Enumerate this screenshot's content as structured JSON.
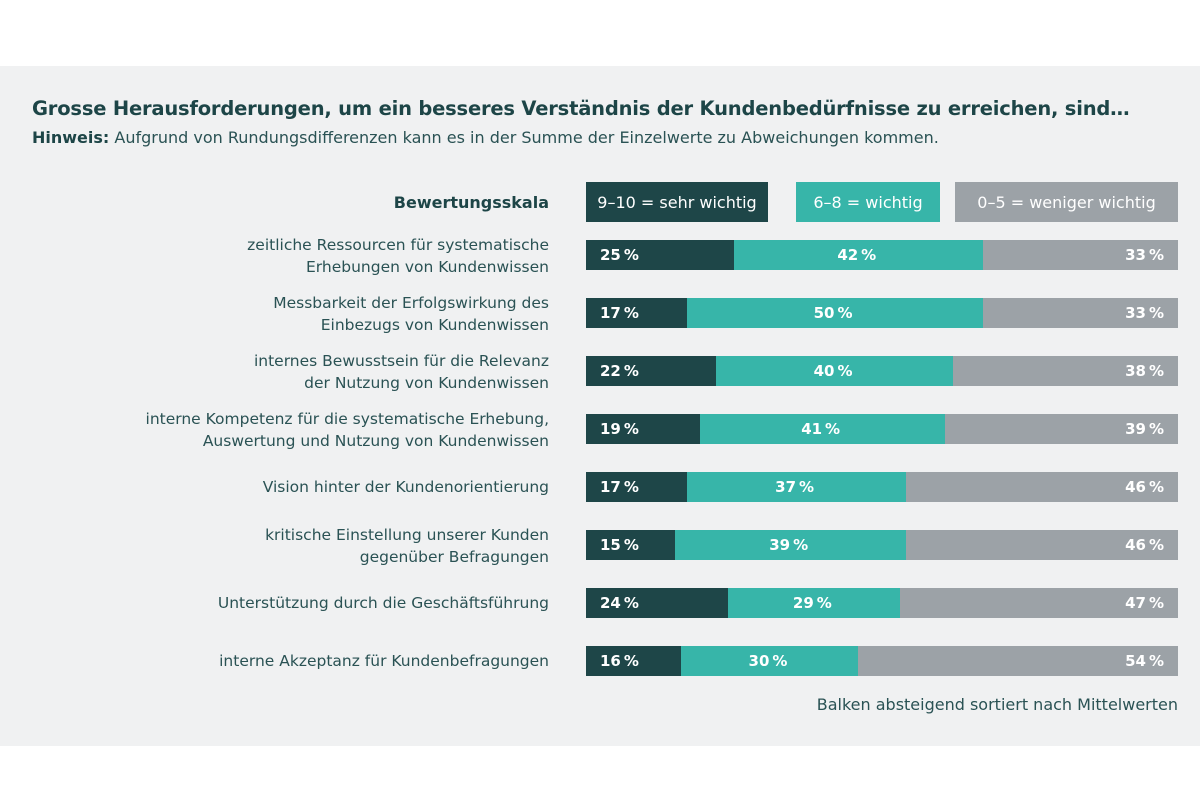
{
  "colors": {
    "sehr_wichtig": "#1e4648",
    "wichtig": "#37b5a9",
    "weniger_wichtig": "#9ca2a7",
    "panel_bg": "#f0f1f2",
    "text": "#1d4547"
  },
  "chart_data": {
    "type": "bar",
    "orientation": "horizontal-stacked-100",
    "title": "Grosse Herausforderungen, um ein besseres Verständnis der Kundenbedürfnisse zu erreichen, sind…",
    "note_label": "Hinweis:",
    "note_text": " Aufgrund von Rundungsdifferenzen kann es in der Summe der Einzelwerte zu Abweichungen kommen.",
    "legend_title": "Bewertungsskala",
    "legend_position": "top",
    "footnote": "Balken absteigend sortiert nach Mittelwerten",
    "unit": "%",
    "xlim": [
      0,
      100
    ],
    "categories": [
      [
        "zeitliche Ressourcen für systematische",
        "Erhebungen von Kundenwissen"
      ],
      [
        "Messbarkeit der Erfolgswirkung des",
        "Einbezugs von Kundenwissen"
      ],
      [
        "internes Bewusstsein für die Relevanz",
        "der Nutzung von Kundenwissen"
      ],
      [
        "interne Kompetenz für die systematische Erhebung,",
        "Auswertung und Nutzung von Kundenwissen"
      ],
      [
        "Vision hinter der Kundenorientierung"
      ],
      [
        "kritische Einstellung unserer Kunden",
        "gegenüber Befragungen"
      ],
      [
        "Unterstützung durch die Geschäftsführung"
      ],
      [
        "interne Akzeptanz für Kundenbefragungen"
      ]
    ],
    "series": [
      {
        "name": "9–10 = sehr wichtig",
        "color_key": "sehr_wichtig",
        "values": [
          25,
          17,
          22,
          19,
          17,
          15,
          24,
          16
        ]
      },
      {
        "name": "6–8 = wichtig",
        "color_key": "wichtig",
        "values": [
          42,
          50,
          40,
          41,
          37,
          39,
          29,
          30
        ]
      },
      {
        "name": "0–5 = weniger wichtig",
        "color_key": "weniger_wichtig",
        "values": [
          33,
          33,
          38,
          39,
          46,
          46,
          47,
          54
        ]
      }
    ]
  }
}
